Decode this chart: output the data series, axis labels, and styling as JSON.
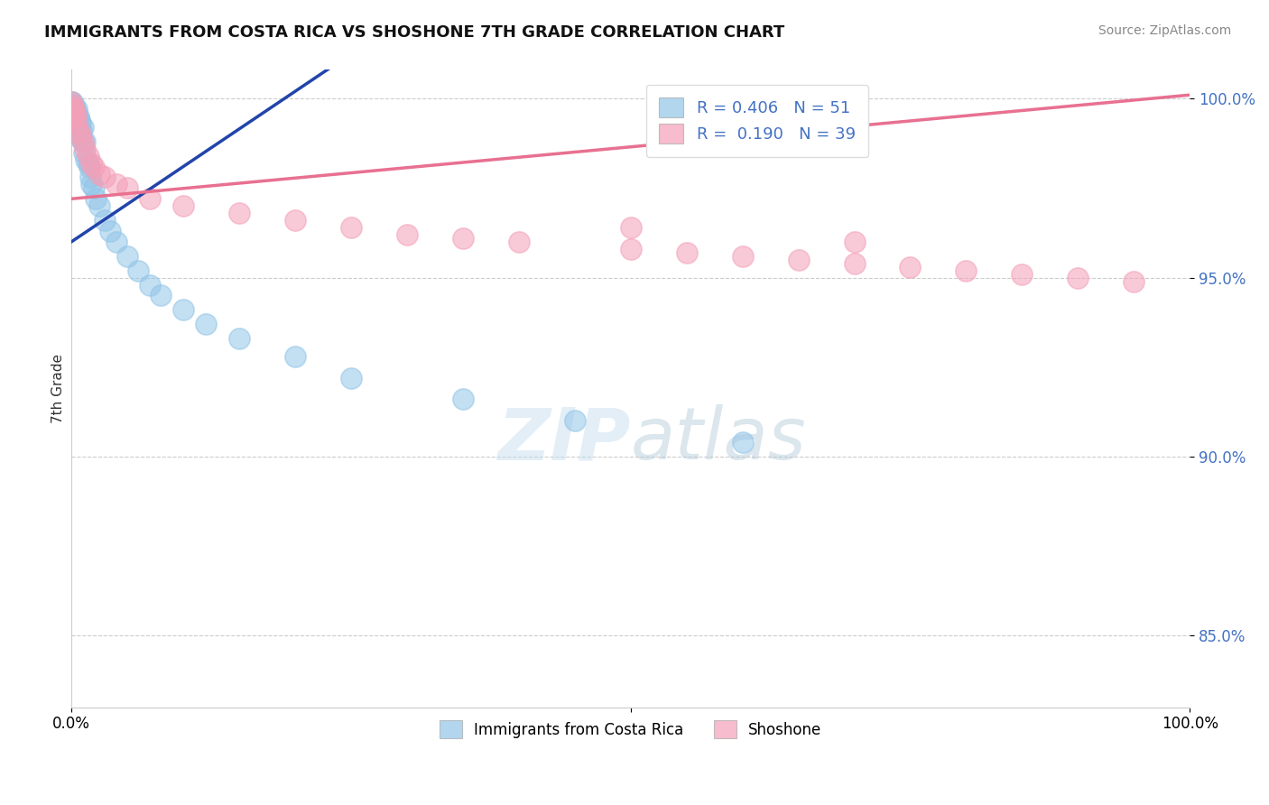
{
  "title": "IMMIGRANTS FROM COSTA RICA VS SHOSHONE 7TH GRADE CORRELATION CHART",
  "source": "Source: ZipAtlas.com",
  "ylabel": "7th Grade",
  "xlim": [
    0.0,
    1.0
  ],
  "ylim": [
    0.83,
    1.008
  ],
  "yticks": [
    0.85,
    0.9,
    0.95,
    1.0
  ],
  "ytick_labels": [
    "85.0%",
    "90.0%",
    "95.0%",
    "100.0%"
  ],
  "legend_entry1": "R = 0.406   N = 51",
  "legend_entry2": "R =  0.190   N = 39",
  "legend_label1": "Immigrants from Costa Rica",
  "legend_label2": "Shoshone",
  "blue_color": "#92C5E8",
  "pink_color": "#F4A0B8",
  "blue_line_color": "#2244AA",
  "pink_line_color": "#E87090",
  "blue_x": [
    0.0,
    0.0,
    0.0,
    0.0,
    0.0,
    0.001,
    0.001,
    0.002,
    0.002,
    0.002,
    0.003,
    0.003,
    0.004,
    0.004,
    0.005,
    0.005,
    0.005,
    0.006,
    0.006,
    0.007,
    0.007,
    0.008,
    0.008,
    0.009,
    0.01,
    0.01,
    0.011,
    0.012,
    0.013,
    0.015,
    0.016,
    0.017,
    0.018,
    0.02,
    0.022,
    0.025,
    0.03,
    0.035,
    0.04,
    0.05,
    0.06,
    0.07,
    0.08,
    0.1,
    0.12,
    0.15,
    0.2,
    0.25,
    0.35,
    0.45,
    0.6
  ],
  "blue_y": [
    0.999,
    0.998,
    0.998,
    0.997,
    0.996,
    0.999,
    0.997,
    0.998,
    0.996,
    0.995,
    0.997,
    0.994,
    0.996,
    0.993,
    0.997,
    0.995,
    0.992,
    0.995,
    0.991,
    0.994,
    0.99,
    0.993,
    0.989,
    0.991,
    0.992,
    0.988,
    0.985,
    0.988,
    0.983,
    0.982,
    0.981,
    0.978,
    0.976,
    0.975,
    0.972,
    0.97,
    0.966,
    0.963,
    0.96,
    0.956,
    0.952,
    0.948,
    0.945,
    0.941,
    0.937,
    0.933,
    0.928,
    0.922,
    0.916,
    0.91,
    0.904
  ],
  "pink_x": [
    0.0,
    0.0,
    0.0,
    0.001,
    0.002,
    0.003,
    0.004,
    0.005,
    0.006,
    0.008,
    0.01,
    0.012,
    0.015,
    0.018,
    0.02,
    0.025,
    0.03,
    0.04,
    0.05,
    0.07,
    0.1,
    0.15,
    0.2,
    0.25,
    0.3,
    0.35,
    0.4,
    0.5,
    0.55,
    0.6,
    0.65,
    0.7,
    0.75,
    0.8,
    0.85,
    0.9,
    0.95,
    0.7,
    0.5
  ],
  "pink_y": [
    0.999,
    0.997,
    0.994,
    0.998,
    0.997,
    0.996,
    0.995,
    0.993,
    0.991,
    0.99,
    0.988,
    0.986,
    0.984,
    0.982,
    0.981,
    0.979,
    0.978,
    0.976,
    0.975,
    0.972,
    0.97,
    0.968,
    0.966,
    0.964,
    0.962,
    0.961,
    0.96,
    0.958,
    0.957,
    0.956,
    0.955,
    0.954,
    0.953,
    0.952,
    0.951,
    0.95,
    0.949,
    0.96,
    0.964
  ],
  "blue_line_x0": 0.0,
  "blue_line_y0": 0.96,
  "blue_line_x1": 0.2,
  "blue_line_y1": 1.002,
  "pink_line_x0": 0.0,
  "pink_line_y0": 0.972,
  "pink_line_x1": 1.0,
  "pink_line_y1": 1.001
}
